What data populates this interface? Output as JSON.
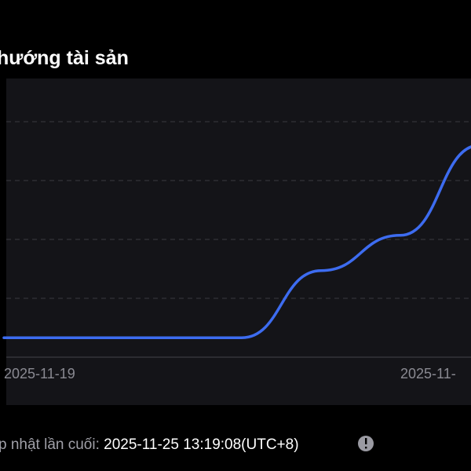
{
  "chart_data": {
    "type": "line",
    "title": "hướng tài sản",
    "categories": [
      "2025-11-19",
      null,
      null,
      null,
      null,
      "2025-11-",
      null
    ],
    "series": [
      {
        "color": "#3d6cf0",
        "values": [
          0.33,
          0.33,
          0.33,
          0.33,
          1.47,
          2.07,
          3.6
        ]
      }
    ],
    "ylim": [
      0,
      4
    ],
    "yticks": [
      0,
      1,
      2,
      3,
      4
    ],
    "grid": true
  },
  "footer": {
    "label": "p nhật lần cuối: ",
    "timestamp": "2025-11-25 13:19:08(UTC+8)"
  }
}
